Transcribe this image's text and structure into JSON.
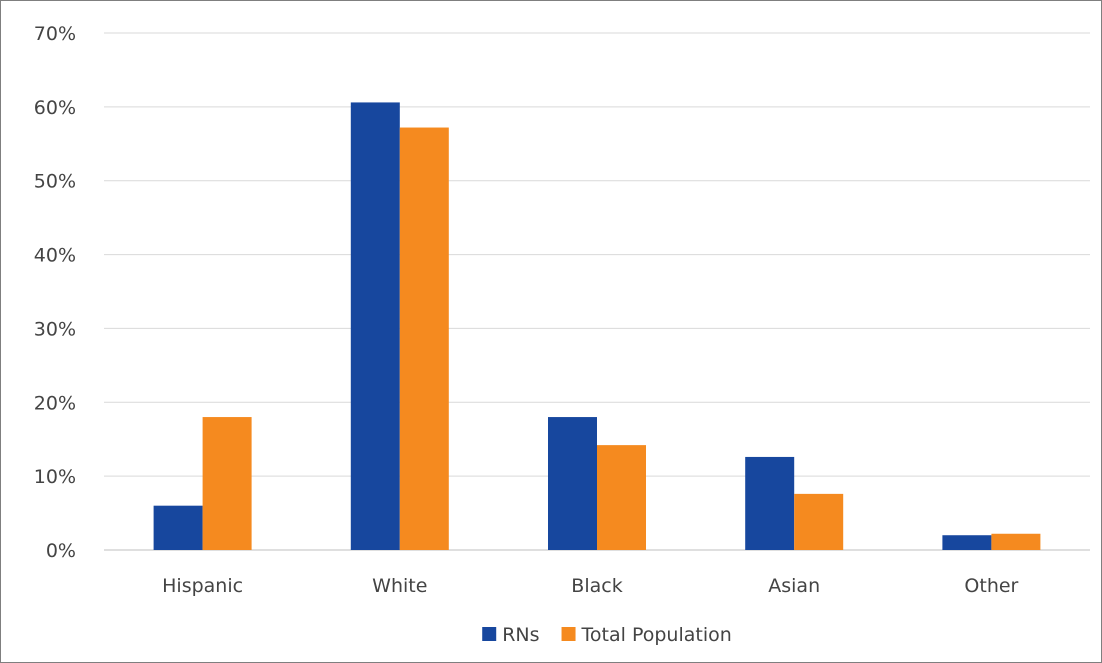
{
  "chart_data": {
    "type": "bar",
    "title": "",
    "xlabel": "",
    "ylabel": "",
    "categories": [
      "Hispanic",
      "White",
      "Black",
      "Asian",
      "Other"
    ],
    "series": [
      {
        "name": "RNs",
        "color": "#17479e",
        "values": [
          6,
          60.6,
          18,
          12.6,
          2
        ]
      },
      {
        "name": "Total Population",
        "color": "#f58a1f",
        "values": [
          18,
          57.2,
          14.2,
          7.6,
          2.2
        ]
      }
    ],
    "ylim": [
      0,
      70
    ],
    "yticks": [
      "0%",
      "10%",
      "20%",
      "30%",
      "40%",
      "50%",
      "60%",
      "70%"
    ],
    "grid": true,
    "legend_position": "bottom"
  }
}
